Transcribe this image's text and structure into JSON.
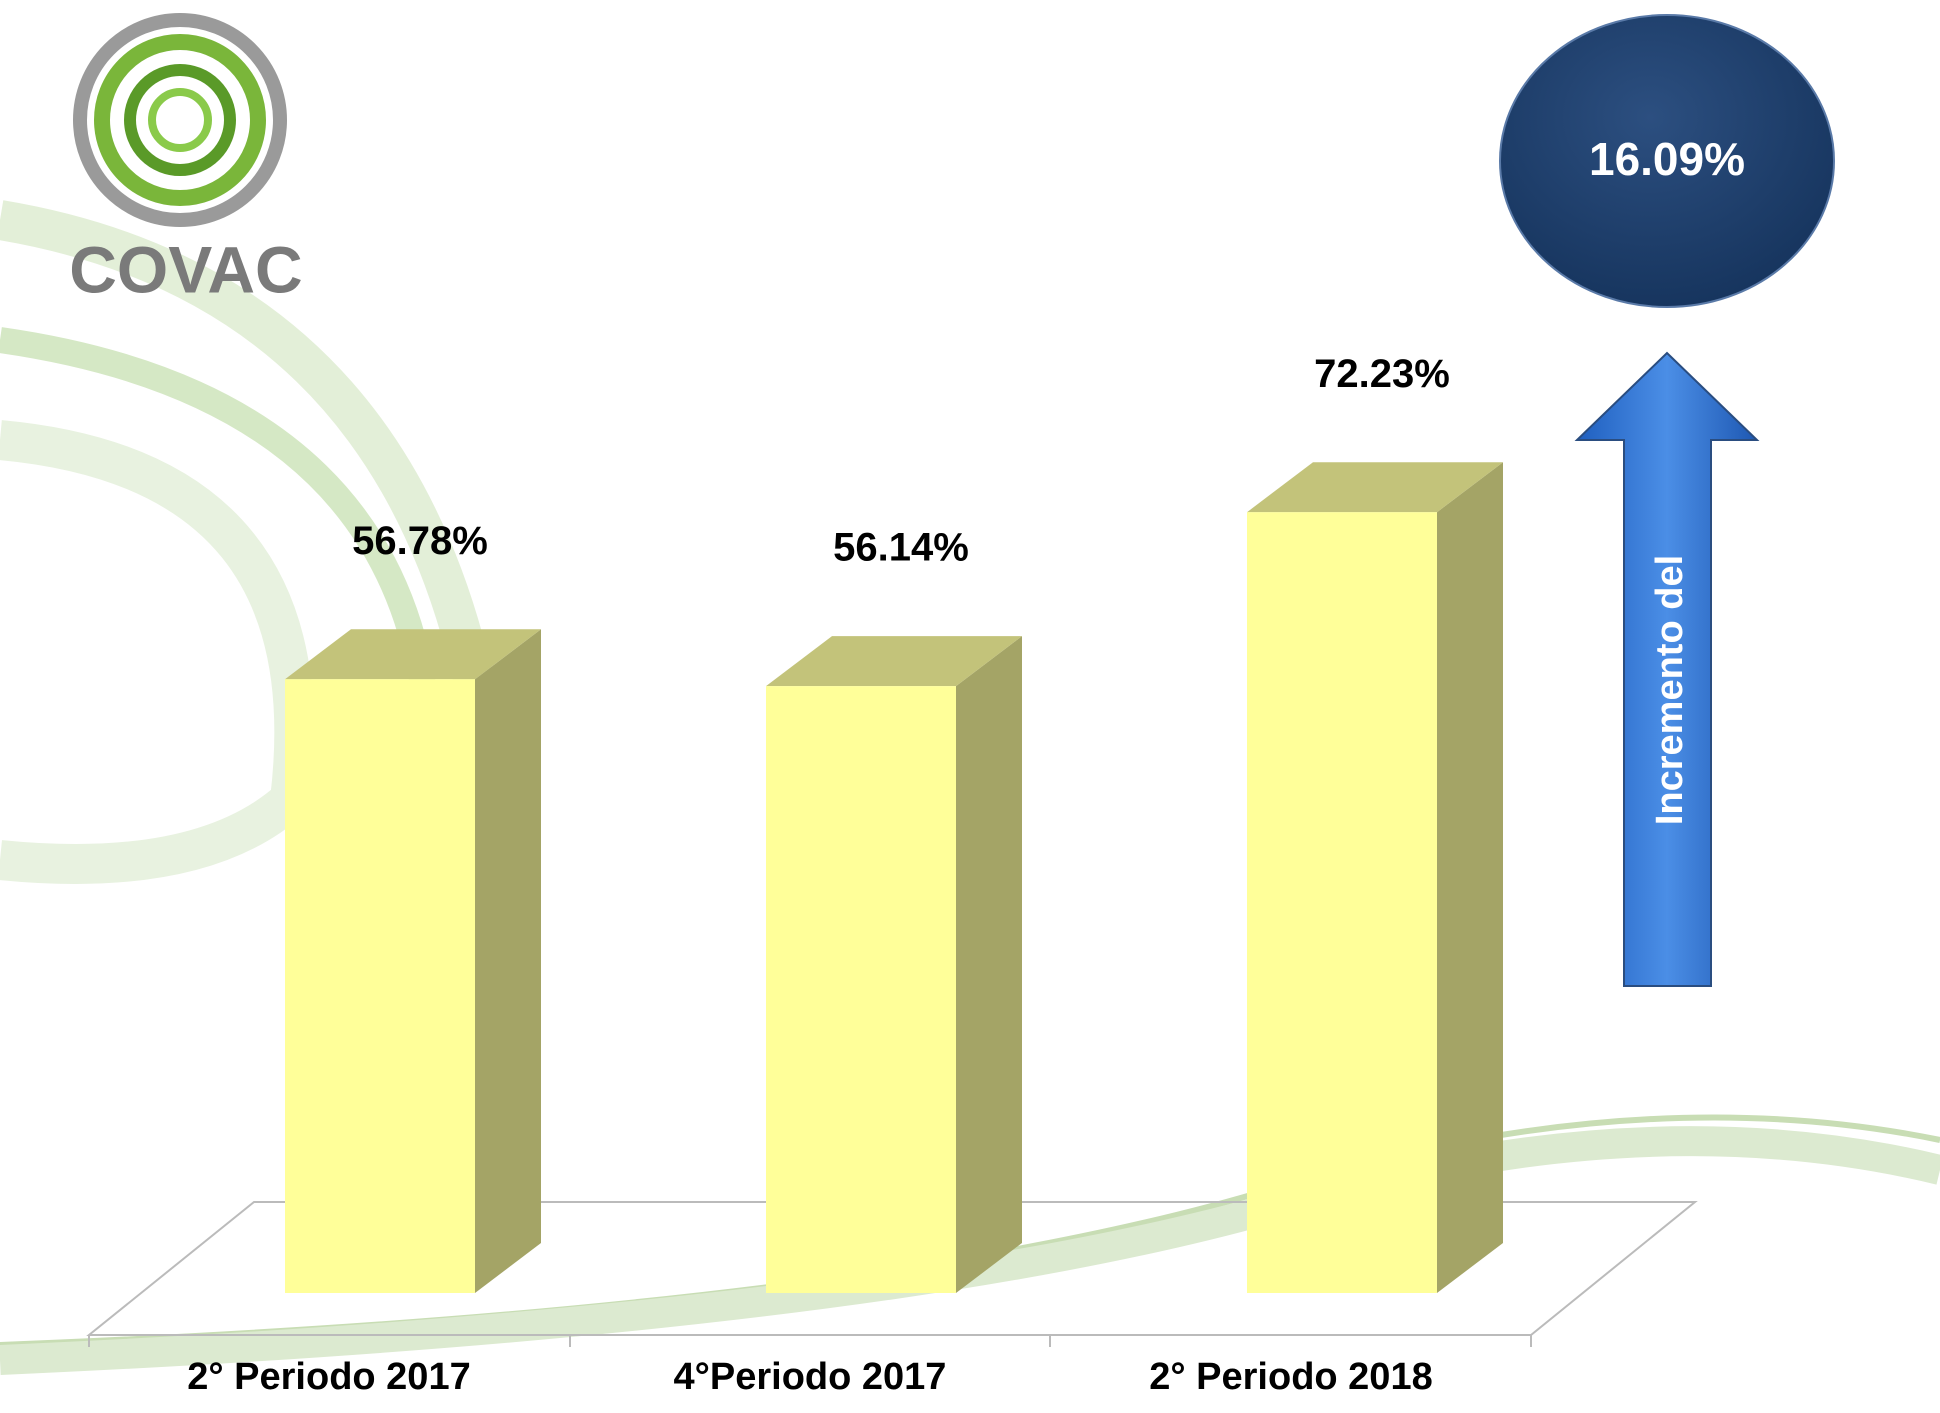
{
  "logo": {
    "text": "COVAC"
  },
  "chart_data": {
    "type": "bar3d",
    "categories": [
      "2° Periodo 2017",
      "4°Periodo 2017",
      "2° Periodo 2018"
    ],
    "values": [
      56.78,
      56.14,
      72.23
    ],
    "value_labels": [
      "56.78%",
      "56.14%",
      "72.23%"
    ],
    "color": "#ffff99",
    "top_color": "#c3c37a",
    "side_color": "#a4a466"
  },
  "callout": {
    "value_label": "16.09%",
    "arrow_label": "Incremento del"
  }
}
